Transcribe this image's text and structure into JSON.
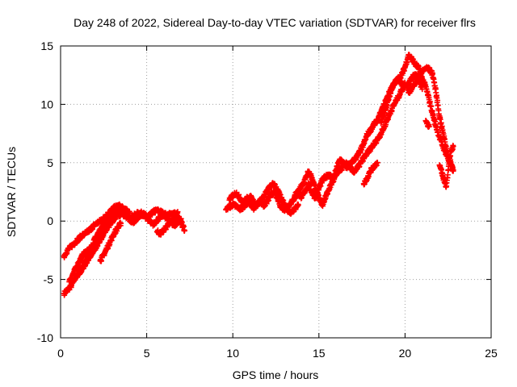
{
  "chart_data": {
    "type": "scatter",
    "title": "Day 248 of 2022, Sidereal Day-to-day VTEC variation (SDTVAR) for receiver flrs",
    "xlabel": "GPS time / hours",
    "ylabel": "SDTVAR / TECUs",
    "xlim": [
      0,
      25
    ],
    "ylim": [
      -10,
      15
    ],
    "xticks": [
      0,
      5,
      10,
      15,
      20,
      25
    ],
    "yticks": [
      -10,
      -5,
      0,
      5,
      10,
      15
    ],
    "grid": true,
    "marker": "+",
    "colors": {
      "series": "#ff0000",
      "grid": "#a0a0a0",
      "axis": "#000000"
    },
    "series": [
      {
        "name": "SDTVAR",
        "segments": [
          {
            "x": [
              0.2,
              0.4,
              0.6,
              0.8,
              1.0,
              1.2,
              1.4,
              1.6,
              1.8,
              2.0,
              2.2,
              2.4,
              2.6,
              2.8,
              3.0,
              3.2,
              3.4,
              3.6,
              3.8,
              4.0,
              4.2,
              4.4,
              4.6,
              4.8,
              5.0,
              5.2,
              5.4,
              5.6,
              5.8,
              6.0,
              6.2,
              6.4,
              6.6,
              6.8,
              7.0,
              7.2
            ],
            "y": [
              -6.2,
              -5.9,
              -5.6,
              -5.0,
              -4.6,
              -4.2,
              -3.6,
              -3.0,
              -2.3,
              -1.5,
              -1.0,
              -0.6,
              -0.2,
              0.1,
              0.3,
              0.5,
              0.7,
              0.6,
              0.4,
              0.3,
              0.4,
              0.6,
              0.7,
              0.6,
              0.4,
              0.5,
              0.8,
              0.9,
              0.8,
              0.6,
              0.5,
              0.6,
              0.7,
              0.3,
              -0.1,
              -0.8
            ]
          },
          {
            "x": [
              0.2,
              0.4,
              0.6,
              0.8,
              1.0,
              1.2,
              1.4,
              1.6,
              1.8,
              2.0,
              2.2,
              2.4,
              2.6,
              2.8,
              3.0,
              3.2,
              3.4,
              3.6,
              3.8,
              4.0
            ],
            "y": [
              -3.0,
              -2.5,
              -2.2,
              -1.9,
              -1.6,
              -1.3,
              -1.1,
              -0.9,
              -0.6,
              -0.3,
              -0.1,
              0.1,
              0.4,
              0.7,
              1.0,
              1.2,
              1.3,
              1.1,
              0.9,
              0.8
            ]
          },
          {
            "x": [
              0.5,
              0.7,
              0.9,
              1.1,
              1.3,
              1.5,
              1.7,
              1.9,
              2.1,
              2.3,
              2.5,
              2.7,
              2.9,
              3.1
            ],
            "y": [
              -5.2,
              -4.6,
              -4.0,
              -3.4,
              -2.9,
              -2.6,
              -2.4,
              -2.2,
              -1.8,
              -1.3,
              -0.8,
              -0.3,
              0.0,
              0.3
            ]
          },
          {
            "x": [
              0.9,
              1.1,
              1.3,
              1.5,
              1.7,
              1.9,
              2.1,
              2.3,
              2.5,
              2.7,
              2.9,
              3.1,
              3.3,
              3.5
            ],
            "y": [
              -4.0,
              -4.4,
              -4.0,
              -3.5,
              -3.0,
              -2.6,
              -2.1,
              -1.6,
              -1.1,
              -0.6,
              -0.2,
              0.2,
              0.5,
              0.6
            ]
          },
          {
            "x": [
              2.3,
              2.5,
              2.7,
              2.9,
              3.1,
              3.3,
              3.5
            ],
            "y": [
              -3.4,
              -2.9,
              -2.3,
              -1.7,
              -1.1,
              -0.6,
              -0.2
            ]
          },
          {
            "x": [
              3.0,
              3.2,
              3.4,
              3.6,
              3.8,
              4.0,
              4.2,
              4.4,
              4.6,
              4.8,
              5.0,
              5.2,
              5.4,
              5.6,
              5.8,
              6.0,
              6.2,
              6.4,
              6.6,
              6.8,
              7.0
            ],
            "y": [
              0.6,
              0.9,
              1.0,
              0.8,
              0.5,
              0.1,
              -0.1,
              0.2,
              0.5,
              0.6,
              0.3,
              -0.1,
              -0.3,
              0.1,
              0.4,
              0.5,
              0.2,
              -0.1,
              -0.4,
              -0.1,
              0.2
            ]
          },
          {
            "x": [
              5.6,
              5.8,
              6.0,
              6.2,
              6.4,
              6.6,
              6.8
            ],
            "y": [
              -0.9,
              -1.1,
              -0.8,
              -0.4,
              -0.1,
              0.3,
              0.8
            ]
          },
          {
            "x": [
              9.6,
              9.8,
              10.0,
              10.2,
              10.4,
              10.6,
              10.8,
              11.0,
              11.2,
              11.4,
              11.6,
              11.8,
              12.0,
              12.2,
              12.4,
              12.6,
              12.8,
              13.0,
              13.2,
              13.4,
              13.6,
              13.8,
              14.0,
              14.2,
              14.4,
              14.6,
              14.8,
              15.0,
              15.2,
              15.4,
              15.6,
              15.8,
              16.0,
              16.2,
              16.4,
              16.6,
              16.8,
              17.0,
              17.2,
              17.4,
              17.6,
              17.8,
              18.0,
              18.2,
              18.4,
              18.6,
              18.8,
              19.0,
              19.2,
              19.4,
              19.6,
              19.8,
              20.0,
              20.2,
              20.4,
              20.6,
              20.8,
              21.0,
              21.2,
              21.4,
              21.6,
              21.8,
              22.0,
              22.2,
              22.4,
              22.6,
              22.8
            ],
            "y": [
              1.0,
              1.2,
              1.4,
              1.3,
              1.0,
              1.2,
              1.6,
              1.5,
              1.1,
              1.4,
              1.8,
              1.3,
              1.7,
              2.2,
              2.5,
              1.9,
              1.2,
              1.0,
              1.3,
              1.6,
              2.0,
              2.4,
              2.0,
              2.6,
              3.2,
              2.4,
              2.0,
              2.8,
              3.5,
              3.8,
              4.0,
              3.6,
              4.4,
              5.2,
              5.0,
              4.6,
              4.8,
              5.2,
              5.5,
              6.0,
              6.6,
              7.4,
              7.8,
              8.3,
              8.6,
              9.3,
              10.0,
              10.7,
              11.4,
              11.8,
              12.2,
              12.5,
              13.2,
              14.2,
              13.9,
              13.4,
              13.1,
              12.2,
              11.5,
              10.4,
              9.2,
              8.1,
              7.2,
              6.4,
              5.7,
              5.0,
              4.3
            ]
          },
          {
            "x": [
              9.8,
              10.0,
              10.2,
              10.4,
              10.6,
              10.8,
              11.0,
              11.2,
              11.4,
              11.6,
              11.8,
              12.0,
              12.2,
              12.4,
              12.6,
              12.8,
              13.0,
              13.2,
              13.4,
              13.6,
              13.8
            ],
            "y": [
              1.8,
              2.2,
              2.4,
              2.0,
              1.6,
              1.9,
              2.1,
              1.7,
              1.4,
              1.7,
              2.1,
              2.6,
              3.0,
              3.2,
              2.6,
              2.0,
              1.5,
              0.9,
              0.7,
              1.1,
              1.4
            ]
          },
          {
            "x": [
              13.6,
              13.8,
              14.0,
              14.2,
              14.4,
              14.6,
              14.8,
              15.0,
              15.2,
              15.4,
              15.6,
              15.8,
              16.0,
              16.2,
              16.4
            ],
            "y": [
              2.2,
              2.6,
              3.0,
              3.6,
              4.2,
              3.7,
              2.8,
              2.0,
              1.4,
              2.1,
              2.8,
              3.4,
              3.9,
              4.4,
              4.6
            ]
          },
          {
            "x": [
              16.4,
              16.6,
              16.8,
              17.0,
              17.2,
              17.4,
              17.6,
              17.8,
              18.0,
              18.2,
              18.4,
              18.6,
              18.8,
              19.0,
              19.2,
              19.4,
              19.6,
              19.8,
              20.0
            ],
            "y": [
              4.6,
              5.0,
              4.6,
              4.2,
              4.5,
              4.9,
              5.4,
              5.8,
              6.2,
              6.6,
              7.0,
              7.5,
              8.1,
              8.8,
              9.5,
              10.1,
              10.6,
              11.2,
              11.8
            ]
          },
          {
            "x": [
              17.6,
              17.8,
              18.0,
              18.2,
              18.4
            ],
            "y": [
              3.2,
              3.7,
              4.3,
              4.7,
              5.0
            ]
          },
          {
            "x": [
              18.6,
              18.8,
              19.0,
              19.2,
              19.4,
              19.6,
              19.8,
              20.0,
              20.2,
              20.4,
              20.6,
              20.8,
              21.0
            ],
            "y": [
              8.4,
              9.2,
              10.3,
              11.2,
              11.9,
              12.1,
              11.8,
              11.4,
              11.7,
              12.3,
              12.6,
              12.1,
              11.3
            ]
          },
          {
            "x": [
              20.2,
              20.4,
              20.6,
              20.8,
              21.0,
              21.2,
              21.4,
              21.6,
              21.8,
              22.0,
              22.2,
              22.4,
              22.6,
              22.8
            ],
            "y": [
              11.0,
              11.4,
              11.9,
              12.3,
              12.8,
              13.1,
              13.0,
              12.6,
              11.0,
              9.0,
              7.6,
              6.2,
              5.2,
              4.4
            ]
          },
          {
            "x": [
              21.2,
              21.4
            ],
            "y": [
              8.6,
              8.1
            ]
          },
          {
            "x": [
              22.0,
              22.2,
              22.4,
              22.6,
              22.8
            ],
            "y": [
              4.8,
              3.8,
              3.0,
              5.6,
              6.4
            ]
          }
        ]
      }
    ]
  }
}
